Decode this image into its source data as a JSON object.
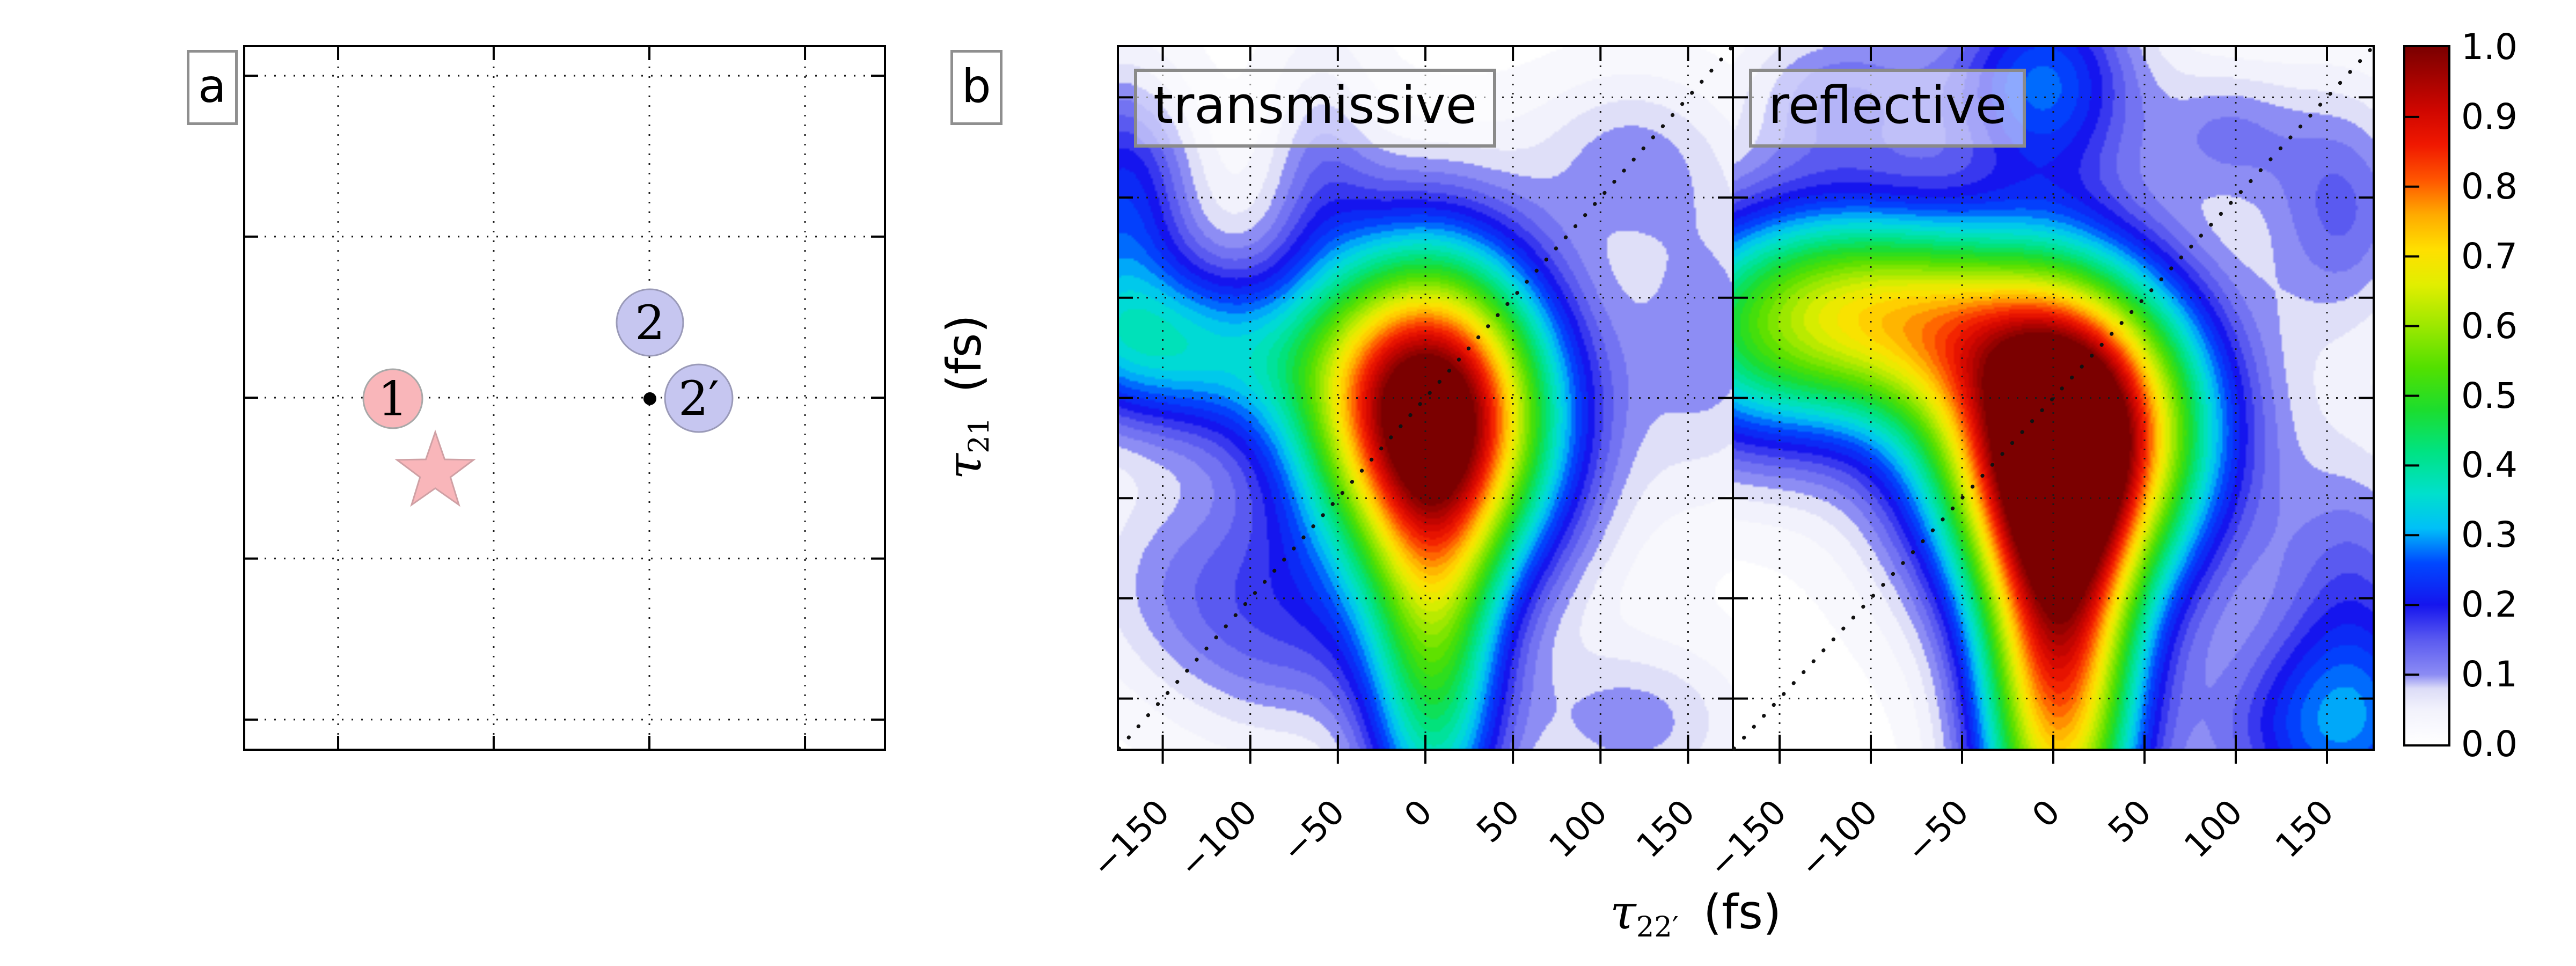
{
  "figure": {
    "panel_a_label": "a",
    "panel_b_label": "b",
    "xlabel": {
      "tau": "τ",
      "sub": "22′",
      "unit": "(fs)"
    },
    "ylabel": {
      "tau": "τ",
      "sub": "21",
      "unit": "(fs)"
    }
  },
  "schematic": {
    "grid_fx": [
      0.1454,
      0.389,
      0.6328,
      0.8765
    ],
    "grid_fy": [
      0.0406,
      0.27,
      0.4996,
      0.729,
      0.9586
    ],
    "circles": [
      {
        "label": "1",
        "fx": 0.2311,
        "fy": 0.5011,
        "r": 0.0462,
        "fill": "#f9b6ba",
        "stroke": "#a8a8a8"
      },
      {
        "label": "2",
        "fx": 0.6336,
        "fy": 0.3925,
        "r": 0.0521,
        "fill": "#c6c6f0",
        "stroke": "#9a9ab8"
      },
      {
        "label": "2′",
        "fx": 0.7101,
        "fy": 0.5004,
        "r": 0.0529,
        "fill": "#c6c6f0",
        "stroke": "#9a9ab8"
      }
    ],
    "star": {
      "fx": 0.2975,
      "fy": 0.606,
      "R": 0.063,
      "r": 0.025,
      "fill": "#f9b6ba",
      "stroke": "#cfa0a4"
    },
    "dot": {
      "fx": 0.6336,
      "fy": 0.5011,
      "r": 0.0101,
      "fill": "#000000"
    }
  },
  "chart_data": {
    "type": "heatmap",
    "x_range": [
      -175,
      175
    ],
    "y_range": [
      -175,
      175
    ],
    "grid_step_fs": 50,
    "x_ticks": [
      {
        "value": -150,
        "label": "−150"
      },
      {
        "value": -100,
        "label": "−100"
      },
      {
        "value": -50,
        "label": "−50"
      },
      {
        "value": 0,
        "label": "0"
      },
      {
        "value": 50,
        "label": "50"
      },
      {
        "value": 100,
        "label": "100"
      },
      {
        "value": 150,
        "label": "150"
      }
    ],
    "diagonal_line": true,
    "panels": [
      {
        "name": "transmissive",
        "gaussians": [
          {
            "a": 1.04,
            "x": 2,
            "y": -6,
            "sx": 50,
            "sy": 56,
            "rot": 8
          },
          {
            "a": 0.33,
            "x": -150,
            "y": 26,
            "sx": 62,
            "sy": 30,
            "rot": -6
          },
          {
            "a": 0.22,
            "x": -173,
            "y": 100,
            "sx": 28,
            "sy": 42,
            "rot": 0
          },
          {
            "a": 0.43,
            "x": 5,
            "y": -130,
            "sx": 27,
            "sy": 75,
            "rot": 0
          },
          {
            "a": 0.09,
            "x": -60,
            "y": 118,
            "sx": 22,
            "sy": 46,
            "rot": 0
          },
          {
            "a": 0.09,
            "x": 115,
            "y": 120,
            "sx": 38,
            "sy": 30,
            "rot": 0
          },
          {
            "a": 0.1,
            "x": 163,
            "y": 30,
            "sx": 35,
            "sy": 55,
            "rot": 0
          },
          {
            "a": 0.08,
            "x": -140,
            "y": -88,
            "sx": 45,
            "sy": 38,
            "rot": 0
          },
          {
            "a": 0.11,
            "x": -80,
            "y": -118,
            "sx": 48,
            "sy": 40,
            "rot": 0
          },
          {
            "a": 0.1,
            "x": 118,
            "y": -162,
            "sx": 45,
            "sy": 28,
            "rot": 0
          }
        ]
      },
      {
        "name": "reflective",
        "gaussians": [
          {
            "a": 1.04,
            "x": 8,
            "y": -18,
            "sx": 52,
            "sy": 55,
            "rot": -12
          },
          {
            "a": 0.52,
            "x": -80,
            "y": 42,
            "sx": 58,
            "sy": 36,
            "rot": -8
          },
          {
            "a": 0.36,
            "x": -162,
            "y": 30,
            "sx": 52,
            "sy": 42,
            "rot": 0
          },
          {
            "a": 0.78,
            "x": 3,
            "y": -135,
            "sx": 30,
            "sy": 85,
            "rot": 0
          },
          {
            "a": 0.26,
            "x": -5,
            "y": 158,
            "sx": 36,
            "sy": 36,
            "rot": 0
          },
          {
            "a": 0.13,
            "x": -115,
            "y": 150,
            "sx": 40,
            "sy": 28,
            "rot": 0
          },
          {
            "a": 0.14,
            "x": 158,
            "y": 95,
            "sx": 30,
            "sy": 42,
            "rot": 0
          },
          {
            "a": 0.15,
            "x": 165,
            "y": -105,
            "sx": 32,
            "sy": 55,
            "rot": 0
          },
          {
            "a": 0.22,
            "x": 152,
            "y": -168,
            "sx": 48,
            "sy": 35,
            "rot": 0
          },
          {
            "a": 0.1,
            "x": 95,
            "y": 132,
            "sx": 28,
            "sy": 24,
            "rot": 0
          }
        ]
      }
    ],
    "colormap": [
      [
        0.0,
        "#ffffff"
      ],
      [
        0.05,
        "#f2f2fc"
      ],
      [
        0.08,
        "#dcdcf7"
      ],
      [
        0.1,
        "#8c8cf4"
      ],
      [
        0.15,
        "#5a5af0"
      ],
      [
        0.2,
        "#1515ee"
      ],
      [
        0.26,
        "#0048ff"
      ],
      [
        0.31,
        "#00c0f8"
      ],
      [
        0.36,
        "#00e0cc"
      ],
      [
        0.42,
        "#00e382"
      ],
      [
        0.48,
        "#1cdd2e"
      ],
      [
        0.54,
        "#52e000"
      ],
      [
        0.6,
        "#9ce800"
      ],
      [
        0.66,
        "#e2ee00"
      ],
      [
        0.71,
        "#ffdf00"
      ],
      [
        0.76,
        "#ffaa00"
      ],
      [
        0.81,
        "#ff5500"
      ],
      [
        0.86,
        "#f01800"
      ],
      [
        0.91,
        "#cf0600"
      ],
      [
        1.0,
        "#7b0000"
      ]
    ],
    "colorbar": {
      "min": 0.0,
      "max": 1.0,
      "tick_labels": [
        "1.0",
        "0.9",
        "0.8",
        "0.7",
        "0.6",
        "0.5",
        "0.4",
        "0.3",
        "0.2",
        "0.1",
        "0.0"
      ]
    }
  }
}
